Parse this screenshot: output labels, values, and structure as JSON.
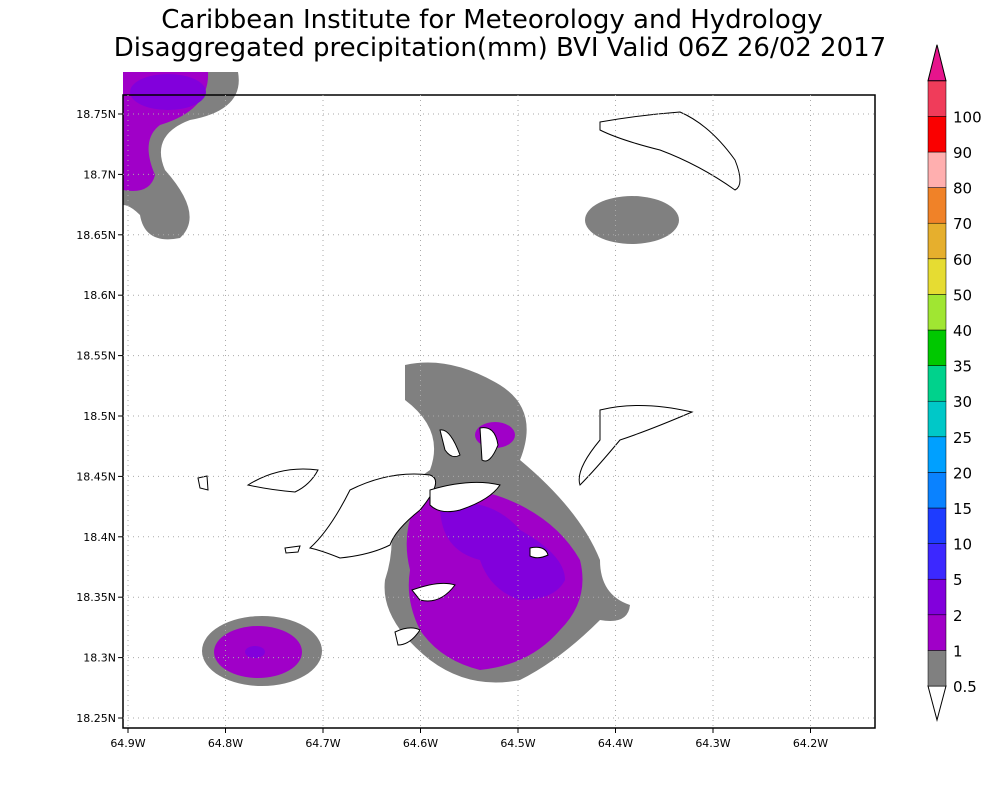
{
  "header": {
    "line1": "Caribbean Institute for Meteorology and Hydrology",
    "line2": "Disaggregated precipitation(mm) BVI Valid 06Z 26/02 2017"
  },
  "map": {
    "x_labels": [
      "64.9W",
      "64.8W",
      "64.7W",
      "64.6W",
      "64.5W",
      "64.4W",
      "64.3W",
      "64.2W"
    ],
    "y_labels": [
      "18.75N",
      "18.7N",
      "18.65N",
      "18.6N",
      "18.55N",
      "18.5N",
      "18.45N",
      "18.4N",
      "18.35N",
      "18.3N",
      "18.25N"
    ]
  },
  "colorbar": {
    "labels": [
      "0.5",
      "1",
      "2",
      "5",
      "10",
      "15",
      "20",
      "25",
      "30",
      "35",
      "40",
      "50",
      "60",
      "70",
      "80",
      "90",
      "100"
    ],
    "colors": [
      "#ffffff",
      "#808080",
      "#a000c8",
      "#8200dc",
      "#3c28ff",
      "#1e3cff",
      "#0a82ff",
      "#00a0ff",
      "#00c8c8",
      "#00d28c",
      "#00c800",
      "#a0e632",
      "#e6dc32",
      "#e6af2d",
      "#f08228",
      "#ffafaf",
      "#fa0000",
      "#f03c5a",
      "#e6148c"
    ]
  }
}
